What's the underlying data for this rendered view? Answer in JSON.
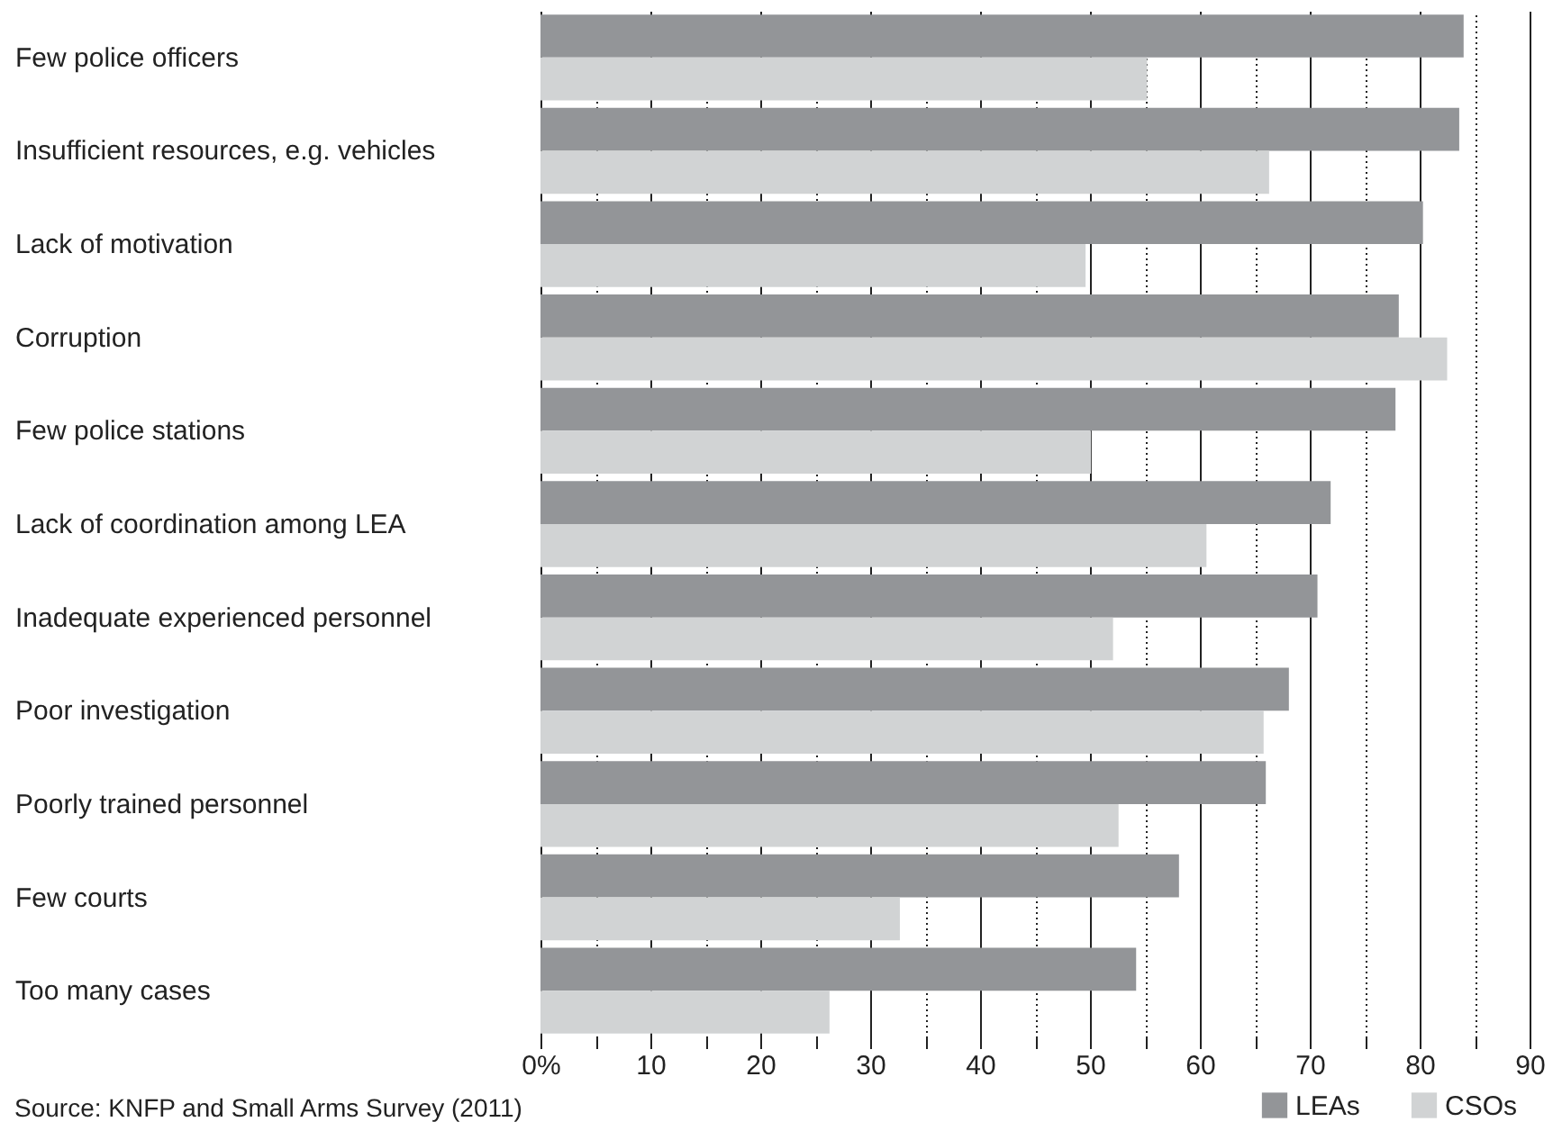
{
  "chart_data": {
    "type": "bar",
    "orientation": "horizontal",
    "categories": [
      "Few police officers",
      "Insufficient resources, e.g. vehicles",
      "Lack of motivation",
      "Corruption",
      "Few police stations",
      "Lack of coordination among LEA",
      "Inadequate experienced personnel",
      "Poor investigation",
      "Poorly trained personnel",
      "Few courts",
      "Too many cases"
    ],
    "series": [
      {
        "name": "LEAs",
        "color": "#939598",
        "values": [
          84.0,
          83.6,
          80.3,
          78.1,
          77.8,
          71.9,
          70.7,
          68.1,
          66.0,
          58.1,
          54.2
        ]
      },
      {
        "name": "CSOs",
        "color": "#d1d3d4",
        "values": [
          55.2,
          66.3,
          49.6,
          82.5,
          50.1,
          60.6,
          52.1,
          65.8,
          52.6,
          32.7,
          26.3
        ]
      }
    ],
    "xlim": [
      0,
      90
    ],
    "xticks": [
      {
        "value": 0,
        "label": "0%"
      },
      {
        "value": 5,
        "label": null
      },
      10,
      {
        "value": 15,
        "label": null
      },
      20,
      {
        "value": 25,
        "label": null
      },
      30,
      {
        "value": 35,
        "label": null
      },
      40,
      {
        "value": 45,
        "label": null
      },
      50,
      {
        "value": 55,
        "label": null
      },
      60,
      {
        "value": 65,
        "label": null
      },
      70,
      {
        "value": 75,
        "label": null
      },
      80,
      {
        "value": 85,
        "label": null
      },
      90
    ],
    "grid": "x",
    "legend": "bottom right",
    "annotations": [
      "Source: KNFP and Small Arms Survey (2011)"
    ]
  }
}
